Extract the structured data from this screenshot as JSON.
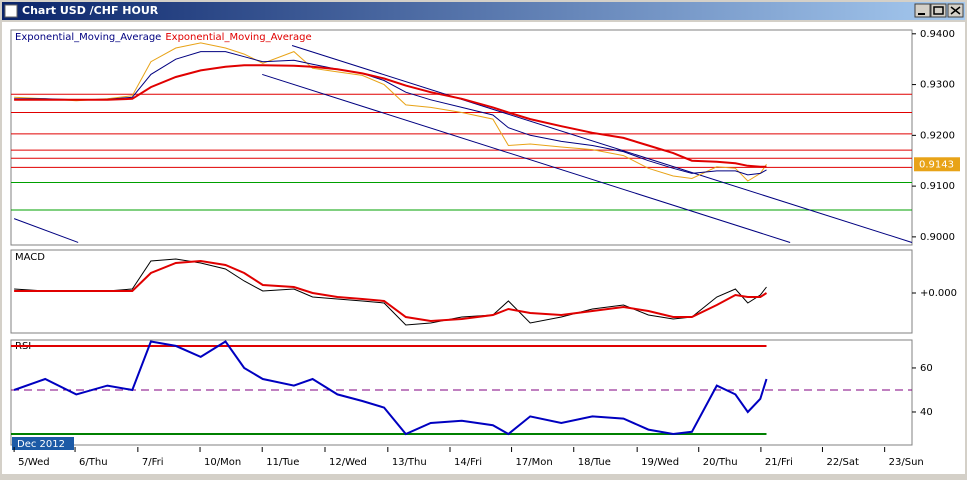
{
  "window": {
    "title": "Chart USD /CHF HOUR"
  },
  "chart_data": [
    {
      "type": "line",
      "x": [
        0,
        0.5,
        1,
        1.5,
        1.9,
        2.2,
        2.6,
        3,
        3.4,
        3.7,
        4,
        4.5,
        4.8,
        5.2,
        5.6,
        5.95,
        6.3,
        6.7,
        7.2,
        7.7,
        7.95,
        8.3,
        8.8,
        9.3,
        9.8,
        10.2,
        10.6,
        10.9,
        11.3,
        11.6,
        11.8,
        12,
        12.1
      ],
      "series": [
        {
          "color": "#e8a317",
          "values": [
            0.9275,
            0.9272,
            0.9268,
            0.9272,
            0.9278,
            0.9345,
            0.9372,
            0.9382,
            0.9372,
            0.936,
            0.9342,
            0.9365,
            0.9332,
            0.9325,
            0.9318,
            0.93,
            0.926,
            0.9255,
            0.9245,
            0.9232,
            0.918,
            0.9183,
            0.9177,
            0.9172,
            0.916,
            0.9135,
            0.912,
            0.9115,
            0.9138,
            0.9135,
            0.911,
            0.9125,
            0.9143
          ]
        },
        {
          "name": "Exponential_Moving_Average",
          "color": "#000080",
          "values": [
            0.9272,
            0.9272,
            0.927,
            0.9271,
            0.9275,
            0.932,
            0.935,
            0.9365,
            0.9365,
            0.9355,
            0.9345,
            0.9348,
            0.934,
            0.933,
            0.9322,
            0.9308,
            0.9285,
            0.927,
            0.9255,
            0.924,
            0.9215,
            0.92,
            0.9188,
            0.918,
            0.9168,
            0.915,
            0.9135,
            0.9125,
            0.913,
            0.913,
            0.9122,
            0.9125,
            0.9132
          ]
        },
        {
          "name": "Exponential_Moving_Average",
          "color": "#e00000",
          "values": [
            0.927,
            0.927,
            0.927,
            0.927,
            0.9272,
            0.9295,
            0.9315,
            0.9328,
            0.9335,
            0.9338,
            0.9338,
            0.9337,
            0.9335,
            0.933,
            0.9322,
            0.9312,
            0.9298,
            0.9285,
            0.9272,
            0.9255,
            0.9245,
            0.9232,
            0.9218,
            0.9205,
            0.9195,
            0.918,
            0.9165,
            0.915,
            0.9148,
            0.9145,
            0.914,
            0.9138,
            0.9138
          ]
        }
      ],
      "xlim": [
        -0.05,
        14.44
      ],
      "ylim": [
        0.8984,
        0.94075
      ],
      "yticks": [
        {
          "value": 0.94,
          "label": "0.9400"
        },
        {
          "value": 0.93,
          "label": "0.9300"
        },
        {
          "value": 0.92,
          "label": "0.9200"
        },
        {
          "value": 0.91,
          "label": "0.9100"
        },
        {
          "value": 0.9,
          "label": "0.9000"
        }
      ],
      "hlines": [
        {
          "value": 0.9281,
          "color": "#e00000"
        },
        {
          "value": 0.9245,
          "color": "#e00000"
        },
        {
          "value": 0.9203,
          "color": "#e00000"
        },
        {
          "value": 0.9171,
          "color": "#e00000"
        },
        {
          "value": 0.9155,
          "color": "#e00000"
        },
        {
          "value": 0.9137,
          "color": "#e00000"
        },
        {
          "value": 0.9107,
          "color": "#00a000"
        },
        {
          "value": 0.9053,
          "color": "#00a000"
        }
      ],
      "trendlines": [
        {
          "x": [
            4.47,
            14.44
          ],
          "y": [
            0.9377,
            0.8989
          ],
          "color": "#000080"
        },
        {
          "x": [
            3.99,
            12.48
          ],
          "y": [
            0.932,
            0.8989
          ],
          "color": "#000080"
        },
        {
          "x": [
            0,
            1.03
          ],
          "y": [
            0.9036,
            0.8989
          ],
          "color": "#000080"
        }
      ],
      "current": {
        "value": 0.9143,
        "label": "0.9143"
      }
    },
    {
      "type": "line",
      "title": "MACD",
      "x": [
        0,
        0.5,
        1,
        1.5,
        1.9,
        2.2,
        2.6,
        3,
        3.4,
        3.7,
        4,
        4.5,
        4.8,
        5.2,
        5.6,
        5.95,
        6.3,
        6.7,
        7.2,
        7.7,
        7.95,
        8.3,
        8.8,
        9.3,
        9.8,
        10.2,
        10.6,
        10.9,
        11.3,
        11.6,
        11.8,
        12,
        12.1
      ],
      "series": [
        {
          "color": "#000000",
          "values": [
            0.0002,
            0.0001,
            0.0001,
            0.0001,
            0.0002,
            0.0016,
            0.0017,
            0.0015,
            0.0012,
            0.0006,
            0.0001,
            0.0002,
            -0.0002,
            -0.0003,
            -0.0004,
            -0.0005,
            -0.0016,
            -0.0015,
            -0.0012,
            -0.0011,
            -0.0004,
            -0.0015,
            -0.0012,
            -0.0008,
            -0.0006,
            -0.0011,
            -0.0013,
            -0.0012,
            -0.0002,
            0.0002,
            -0.0005,
            -0.0001,
            0.0003
          ]
        },
        {
          "color": "#e00000",
          "values": [
            0.0001,
            0.0001,
            0.0001,
            0.0001,
            0.0001,
            0.001,
            0.0015,
            0.0016,
            0.0014,
            0.001,
            0.0004,
            0.0003,
            0,
            -0.0002,
            -0.0003,
            -0.0004,
            -0.0012,
            -0.0014,
            -0.0013,
            -0.0011,
            -0.0008,
            -0.001,
            -0.0011,
            -0.0009,
            -0.0007,
            -0.0009,
            -0.0012,
            -0.0012,
            -0.0006,
            -0.0001,
            -0.0002,
            -0.0002,
            0
          ]
        }
      ],
      "xlim": [
        -0.05,
        14.44
      ],
      "ylim": [
        -0.002,
        0.00215
      ],
      "yticks": [
        {
          "value": 0,
          "label": "+0.000"
        }
      ]
    },
    {
      "type": "line",
      "title": "RSI",
      "x": [
        0,
        0.5,
        1,
        1.5,
        1.9,
        2.2,
        2.6,
        3,
        3.4,
        3.7,
        4,
        4.5,
        4.8,
        5.2,
        5.6,
        5.95,
        6.3,
        6.7,
        7.2,
        7.7,
        7.95,
        8.3,
        8.8,
        9.3,
        9.8,
        10.2,
        10.6,
        10.9,
        11.3,
        11.6,
        11.8,
        12,
        12.1
      ],
      "series": [
        {
          "color": "#0000c0",
          "values": [
            50,
            55,
            48,
            52,
            50,
            72,
            70,
            65,
            72,
            60,
            55,
            52,
            55,
            48,
            45,
            42,
            30,
            35,
            36,
            34,
            30,
            38,
            35,
            38,
            37,
            32,
            30,
            31,
            52,
            48,
            40,
            46,
            55
          ]
        }
      ],
      "xlim": [
        -0.05,
        14.44
      ],
      "ylim": [
        25,
        72.7
      ],
      "yticks": [
        60,
        40
      ],
      "levels": [
        {
          "value": 70,
          "color": "#e00000"
        },
        {
          "value": 50,
          "color": "#800080",
          "dashed": true
        },
        {
          "value": 30,
          "color": "#008000"
        }
      ],
      "period_label": "Dec 2012",
      "xticks": [
        {
          "value": 0,
          "label": "5/Wed"
        },
        {
          "value": 0.98,
          "label": "6/Thu"
        },
        {
          "value": 1.99,
          "label": "7/Fri"
        },
        {
          "value": 2.99,
          "label": "10/Mon"
        },
        {
          "value": 3.99,
          "label": "11/Tue"
        },
        {
          "value": 5,
          "label": "12/Wed"
        },
        {
          "value": 6.01,
          "label": "13/Thu"
        },
        {
          "value": 7.01,
          "label": "14/Fri"
        },
        {
          "value": 8,
          "label": "17/Mon"
        },
        {
          "value": 9,
          "label": "18/Tue"
        },
        {
          "value": 10.02,
          "label": "19/Wed"
        },
        {
          "value": 11.01,
          "label": "20/Thu"
        },
        {
          "value": 12.01,
          "label": "21/Fri"
        },
        {
          "value": 13,
          "label": "22/Sat"
        },
        {
          "value": 14,
          "label": "23/Sun"
        }
      ]
    }
  ]
}
